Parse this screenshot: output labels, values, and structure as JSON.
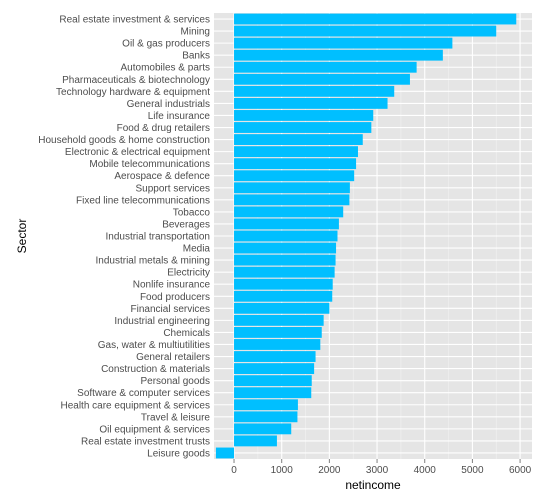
{
  "chart_data": {
    "type": "bar",
    "orientation": "horizontal",
    "xlabel": "netincome",
    "ylabel": "Sector",
    "xlim": [
      -420,
      6250
    ],
    "x_ticks": [
      0,
      1000,
      2000,
      3000,
      4000,
      5000,
      6000
    ],
    "grid": true,
    "colors": {
      "bar": "#00BFFF",
      "panel": "#E5E5E5",
      "grid_major": "#FFFFFF",
      "grid_minor": "#F2F2F2"
    },
    "categories": [
      "Real estate investment & services",
      "Mining",
      "Oil & gas producers",
      "Banks",
      "Automobiles & parts",
      "Pharmaceuticals & biotechnology",
      "Technology hardware & equipment",
      "General industrials",
      "Life insurance",
      "Food & drug retailers",
      "Household goods & home construction",
      "Electronic & electrical equipment",
      "Mobile telecommunications",
      "Aerospace & defence",
      "Support services",
      "Fixed line telecommunications",
      "Tobacco",
      "Beverages",
      "Industrial transportation",
      "Media",
      "Industrial metals & mining",
      "Electricity",
      "Nonlife insurance",
      "Food producers",
      "Financial services",
      "Industrial engineering",
      "Chemicals",
      "Gas, water & multiutilities",
      "General retailers",
      "Construction & materials",
      "Personal goods",
      "Software & computer services",
      "Health care equipment & services",
      "Travel & leisure",
      "Oil equipment & services",
      "Real estate investment trusts",
      "Leisure goods"
    ],
    "values": [
      5920,
      5500,
      4580,
      4380,
      3830,
      3690,
      3360,
      3220,
      2920,
      2880,
      2700,
      2600,
      2560,
      2520,
      2430,
      2420,
      2290,
      2200,
      2170,
      2140,
      2130,
      2110,
      2070,
      2060,
      2000,
      1880,
      1840,
      1810,
      1710,
      1680,
      1630,
      1620,
      1340,
      1330,
      1200,
      900,
      -380
    ]
  }
}
